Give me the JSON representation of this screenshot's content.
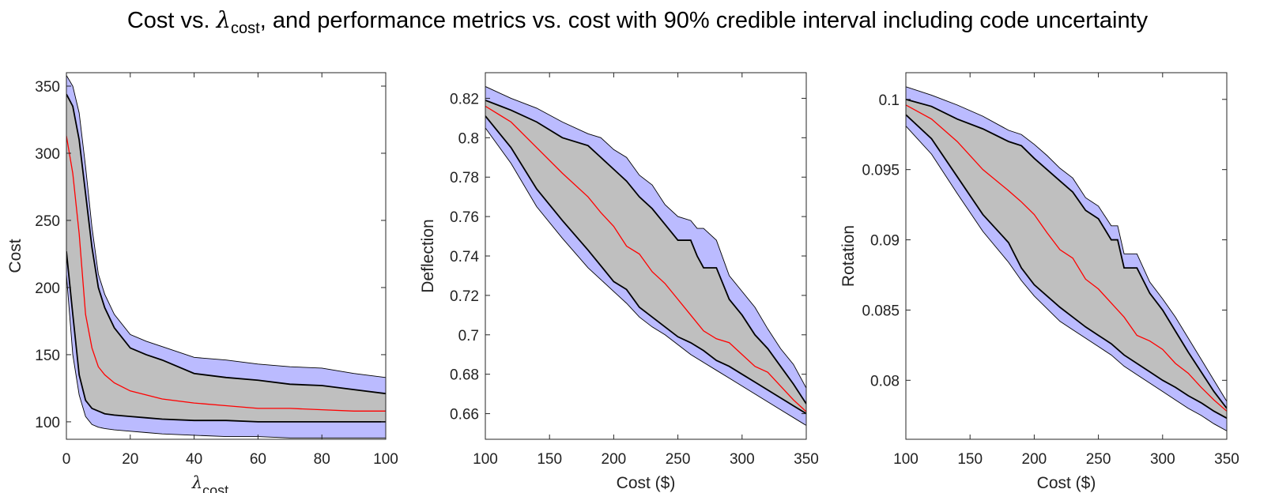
{
  "title": {
    "prefix": "Cost vs. ",
    "lambda": "λ",
    "lambda_sub": "cost",
    "suffix": ", and performance metrics vs. cost with 90% credible interval including code uncertainty"
  },
  "colors": {
    "outer_band": "#bbbbff",
    "inner_band": "#bfbfbf",
    "median": "#ff0000",
    "bound": "#000000"
  },
  "chart_data": [
    {
      "type": "area",
      "ylabel": "Cost",
      "xlabel": "λ",
      "xlabel_sub": "cost",
      "xlim": [
        0,
        100
      ],
      "ylim": [
        87,
        360
      ],
      "xticks": [
        0,
        20,
        40,
        60,
        80,
        100
      ],
      "yticks": [
        100,
        150,
        200,
        250,
        300,
        350
      ],
      "x": [
        0,
        2,
        4,
        6,
        8,
        10,
        12,
        15,
        20,
        25,
        30,
        40,
        50,
        60,
        70,
        80,
        90,
        100
      ],
      "series": [
        {
          "role": "outer_upper",
          "values": [
            358,
            350,
            330,
            290,
            245,
            210,
            195,
            180,
            165,
            160,
            156,
            148,
            146,
            143,
            141,
            140,
            136,
            133
          ]
        },
        {
          "role": "inner_upper",
          "values": [
            344,
            335,
            310,
            270,
            230,
            200,
            185,
            170,
            155,
            150,
            146,
            136,
            133,
            131,
            128,
            127,
            124,
            121
          ]
        },
        {
          "role": "median",
          "values": [
            313,
            285,
            240,
            180,
            155,
            141,
            135,
            129,
            123,
            120,
            117,
            114,
            112,
            110,
            110,
            109,
            108,
            108
          ]
        },
        {
          "role": "inner_lower",
          "values": [
            227,
            180,
            135,
            116,
            110,
            108,
            106,
            105,
            104,
            103,
            102,
            101,
            101,
            100,
            100,
            100,
            100,
            100
          ]
        },
        {
          "role": "outer_lower",
          "values": [
            210,
            150,
            120,
            104,
            98,
            96,
            95,
            94,
            93,
            92,
            91,
            90,
            89,
            89,
            88,
            88,
            88,
            88
          ]
        }
      ]
    },
    {
      "type": "area",
      "ylabel": "Deflection",
      "xlabel": "Cost ($)",
      "xlim": [
        100,
        350
      ],
      "ylim": [
        0.647,
        0.833
      ],
      "xticks": [
        100,
        150,
        200,
        250,
        300,
        350
      ],
      "yticks": [
        0.66,
        0.68,
        0.7,
        0.72,
        0.74,
        0.76,
        0.78,
        0.8,
        0.82
      ],
      "ytick_labels": [
        "0.66",
        "0.68",
        "0.7",
        "0.72",
        "0.74",
        "0.76",
        "0.78",
        "0.8",
        "0.82"
      ],
      "x": [
        100,
        120,
        140,
        160,
        180,
        190,
        200,
        210,
        220,
        230,
        240,
        250,
        260,
        265,
        270,
        280,
        290,
        300,
        310,
        320,
        330,
        340,
        350
      ],
      "series": [
        {
          "role": "outer_upper",
          "values": [
            0.826,
            0.82,
            0.815,
            0.808,
            0.802,
            0.8,
            0.794,
            0.79,
            0.781,
            0.776,
            0.766,
            0.76,
            0.758,
            0.754,
            0.754,
            0.748,
            0.73,
            0.722,
            0.714,
            0.703,
            0.693,
            0.685,
            0.673
          ]
        },
        {
          "role": "inner_upper",
          "values": [
            0.819,
            0.814,
            0.808,
            0.8,
            0.796,
            0.79,
            0.784,
            0.778,
            0.77,
            0.764,
            0.756,
            0.748,
            0.748,
            0.74,
            0.734,
            0.734,
            0.718,
            0.71,
            0.7,
            0.693,
            0.684,
            0.675,
            0.665
          ]
        },
        {
          "role": "median",
          "values": [
            0.816,
            0.808,
            0.795,
            0.782,
            0.77,
            0.762,
            0.755,
            0.745,
            0.741,
            0.732,
            0.726,
            0.718,
            0.71,
            0.706,
            0.702,
            0.698,
            0.696,
            0.69,
            0.684,
            0.681,
            0.674,
            0.667,
            0.661
          ]
        },
        {
          "role": "inner_lower",
          "values": [
            0.811,
            0.795,
            0.774,
            0.758,
            0.743,
            0.735,
            0.727,
            0.723,
            0.714,
            0.709,
            0.704,
            0.699,
            0.696,
            0.694,
            0.692,
            0.687,
            0.684,
            0.68,
            0.676,
            0.672,
            0.668,
            0.664,
            0.66
          ]
        },
        {
          "role": "outer_lower",
          "values": [
            0.805,
            0.787,
            0.765,
            0.749,
            0.734,
            0.728,
            0.722,
            0.716,
            0.709,
            0.704,
            0.7,
            0.695,
            0.69,
            0.688,
            0.686,
            0.682,
            0.678,
            0.674,
            0.67,
            0.666,
            0.662,
            0.658,
            0.654
          ]
        }
      ]
    },
    {
      "type": "area",
      "ylabel": "Rotation",
      "xlabel": "Cost ($)",
      "xlim": [
        100,
        350
      ],
      "ylim": [
        0.0758,
        0.1019
      ],
      "xticks": [
        100,
        150,
        200,
        250,
        300,
        350
      ],
      "yticks": [
        0.08,
        0.085,
        0.09,
        0.095,
        0.1
      ],
      "ytick_labels": [
        "0.08",
        "0.085",
        "0.09",
        "0.095",
        "0.1"
      ],
      "x": [
        100,
        120,
        140,
        160,
        180,
        190,
        200,
        210,
        220,
        230,
        240,
        250,
        260,
        265,
        270,
        280,
        290,
        300,
        310,
        320,
        330,
        340,
        350
      ],
      "series": [
        {
          "role": "outer_upper",
          "values": [
            0.1009,
            0.1003,
            0.0996,
            0.0988,
            0.0978,
            0.0975,
            0.0968,
            0.096,
            0.0951,
            0.0944,
            0.093,
            0.0924,
            0.091,
            0.091,
            0.089,
            0.089,
            0.087,
            0.0858,
            0.0845,
            0.083,
            0.0815,
            0.08,
            0.0785
          ]
        },
        {
          "role": "inner_upper",
          "values": [
            0.1,
            0.0995,
            0.0986,
            0.0979,
            0.097,
            0.0967,
            0.0958,
            0.095,
            0.0942,
            0.0934,
            0.0921,
            0.0915,
            0.09,
            0.09,
            0.088,
            0.088,
            0.0862,
            0.085,
            0.0835,
            0.082,
            0.0806,
            0.0792,
            0.078
          ]
        },
        {
          "role": "median",
          "values": [
            0.0996,
            0.0986,
            0.097,
            0.095,
            0.0935,
            0.0927,
            0.0918,
            0.0905,
            0.0893,
            0.0887,
            0.0872,
            0.0865,
            0.0855,
            0.085,
            0.0845,
            0.0832,
            0.0828,
            0.0822,
            0.0812,
            0.0805,
            0.0795,
            0.0786,
            0.0778
          ]
        },
        {
          "role": "inner_lower",
          "values": [
            0.0989,
            0.0972,
            0.0945,
            0.0918,
            0.0898,
            0.088,
            0.0868,
            0.086,
            0.0852,
            0.0845,
            0.0838,
            0.0832,
            0.0826,
            0.0822,
            0.0818,
            0.0812,
            0.0806,
            0.08,
            0.0795,
            0.0789,
            0.0784,
            0.0778,
            0.0773
          ]
        },
        {
          "role": "outer_lower",
          "values": [
            0.0981,
            0.0961,
            0.0933,
            0.0906,
            0.0884,
            0.0871,
            0.086,
            0.0851,
            0.0842,
            0.0836,
            0.083,
            0.0824,
            0.0818,
            0.0814,
            0.081,
            0.0804,
            0.0798,
            0.0792,
            0.0786,
            0.078,
            0.0775,
            0.0769,
            0.0764
          ]
        }
      ]
    }
  ]
}
